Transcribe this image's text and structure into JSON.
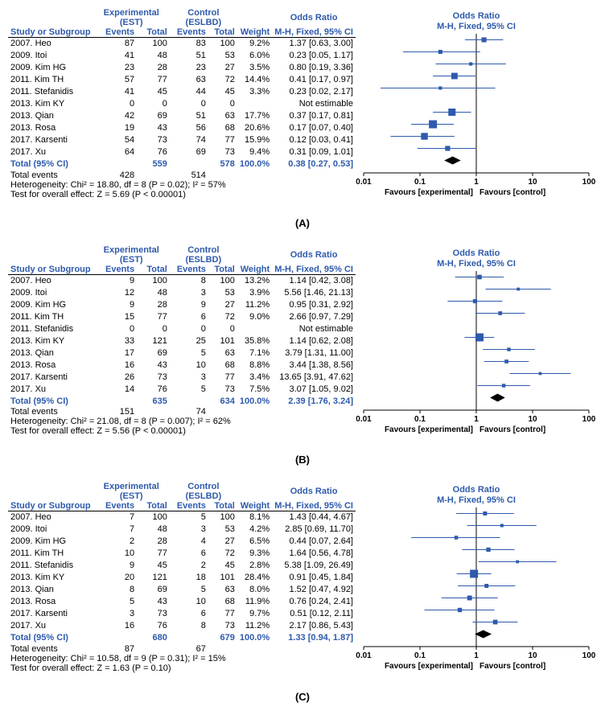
{
  "plot_axis": {
    "xmin_log": -2,
    "xmax_log": 2,
    "ticks": [
      0.01,
      0.1,
      1,
      10,
      100
    ],
    "tick_labels": [
      "0.01",
      "0.1",
      "1",
      "10",
      "100"
    ],
    "favours_left": "Favours [experimental]",
    "favours_right": "Favours [control]",
    "axis_color": "#000000",
    "marker_color": "#2e5aac",
    "square_color": "#2e5aac",
    "diamond_color": "#000000",
    "ci_line_width": 1,
    "square_max_size": 10,
    "title": "Odds Ratio",
    "subtitle": "M-H, Fixed, 95% CI"
  },
  "header": {
    "study_col": "Study or Subgroup",
    "exp_group_label": "Experimental (EST)",
    "ctrl_group_label": "Control (ESLBD)",
    "events": "Events",
    "total": "Total",
    "weight": "Weight",
    "effect": "Odds Ratio",
    "effect_sub": "M-H, Fixed, 95% CI"
  },
  "panels": [
    {
      "label": "(A)",
      "rows": [
        {
          "study": "2007. Heo",
          "ee": 87,
          "et": 100,
          "ce": 83,
          "ct": 100,
          "w": "9.2%",
          "or": 1.37,
          "lo": 0.63,
          "hi": 3.0,
          "disp": "1.37 [0.63, 3.00]"
        },
        {
          "study": "2009. Itoi",
          "ee": 41,
          "et": 48,
          "ce": 51,
          "ct": 53,
          "w": "6.0%",
          "or": 0.23,
          "lo": 0.05,
          "hi": 1.17,
          "disp": "0.23 [0.05, 1.17]"
        },
        {
          "study": "2009. Kim HG",
          "ee": 23,
          "et": 28,
          "ce": 23,
          "ct": 27,
          "w": "3.5%",
          "or": 0.8,
          "lo": 0.19,
          "hi": 3.36,
          "disp": "0.80 [0.19, 3.36]"
        },
        {
          "study": "2011. Kim TH",
          "ee": 57,
          "et": 77,
          "ce": 63,
          "ct": 72,
          "w": "14.4%",
          "or": 0.41,
          "lo": 0.17,
          "hi": 0.97,
          "disp": "0.41 [0.17, 0.97]"
        },
        {
          "study": "2011. Stefanidis",
          "ee": 41,
          "et": 45,
          "ce": 44,
          "ct": 45,
          "w": "3.3%",
          "or": 0.23,
          "lo": 0.02,
          "hi": 2.17,
          "disp": "0.23 [0.02, 2.17]"
        },
        {
          "study": "2013. Kim KY",
          "ee": 0,
          "et": 0,
          "ce": 0,
          "ct": 0,
          "w": "",
          "or": null,
          "lo": null,
          "hi": null,
          "disp": "Not estimable"
        },
        {
          "study": "2013. Qian",
          "ee": 42,
          "et": 69,
          "ce": 51,
          "ct": 63,
          "w": "17.7%",
          "or": 0.37,
          "lo": 0.17,
          "hi": 0.81,
          "disp": "0.37 [0.17, 0.81]"
        },
        {
          "study": "2013. Rosa",
          "ee": 19,
          "et": 43,
          "ce": 56,
          "ct": 68,
          "w": "20.6%",
          "or": 0.17,
          "lo": 0.07,
          "hi": 0.4,
          "disp": "0.17 [0.07, 0.40]"
        },
        {
          "study": "2017. Karsenti",
          "ee": 54,
          "et": 73,
          "ce": 74,
          "ct": 77,
          "w": "15.9%",
          "or": 0.12,
          "lo": 0.03,
          "hi": 0.41,
          "disp": "0.12 [0.03, 0.41]"
        },
        {
          "study": "2017. Xu",
          "ee": 64,
          "et": 76,
          "ce": 69,
          "ct": 73,
          "w": "9.4%",
          "or": 0.31,
          "lo": 0.09,
          "hi": 1.01,
          "disp": "0.31 [0.09, 1.01]"
        }
      ],
      "total": {
        "et": 559,
        "ct": 578,
        "w": "100.0%",
        "or": 0.38,
        "lo": 0.27,
        "hi": 0.53,
        "disp": "0.38 [0.27, 0.53]"
      },
      "total_label": "Total (95% CI)",
      "total_events": {
        "label": "Total events",
        "ee": 428,
        "ce": 514
      },
      "het": "Heterogeneity: Chi² = 18.80, df = 8 (P = 0.02); I² = 57%",
      "test": "Test for overall effect: Z = 5.69 (P < 0.00001)"
    },
    {
      "label": "(B)",
      "rows": [
        {
          "study": "2007. Heo",
          "ee": 9,
          "et": 100,
          "ce": 8,
          "ct": 100,
          "w": "13.2%",
          "or": 1.14,
          "lo": 0.42,
          "hi": 3.08,
          "disp": "1.14 [0.42, 3.08]"
        },
        {
          "study": "2009. Itoi",
          "ee": 12,
          "et": 48,
          "ce": 3,
          "ct": 53,
          "w": "3.9%",
          "or": 5.56,
          "lo": 1.46,
          "hi": 21.13,
          "disp": "5.56 [1.46, 21.13]"
        },
        {
          "study": "2009. Kim HG",
          "ee": 9,
          "et": 28,
          "ce": 9,
          "ct": 27,
          "w": "11.2%",
          "or": 0.95,
          "lo": 0.31,
          "hi": 2.92,
          "disp": "0.95 [0.31, 2.92]"
        },
        {
          "study": "2011. Kim TH",
          "ee": 15,
          "et": 77,
          "ce": 6,
          "ct": 72,
          "w": "9.0%",
          "or": 2.66,
          "lo": 0.97,
          "hi": 7.29,
          "disp": "2.66 [0.97, 7.29]"
        },
        {
          "study": "2011. Stefanidis",
          "ee": 0,
          "et": 0,
          "ce": 0,
          "ct": 0,
          "w": "",
          "or": null,
          "lo": null,
          "hi": null,
          "disp": "Not estimable"
        },
        {
          "study": "2013. Kim KY",
          "ee": 33,
          "et": 121,
          "ce": 25,
          "ct": 101,
          "w": "35.8%",
          "or": 1.14,
          "lo": 0.62,
          "hi": 2.08,
          "disp": "1.14 [0.62, 2.08]"
        },
        {
          "study": "2013. Qian",
          "ee": 17,
          "et": 69,
          "ce": 5,
          "ct": 63,
          "w": "7.1%",
          "or": 3.79,
          "lo": 1.31,
          "hi": 11.0,
          "disp": "3.79 [1.31, 11.00]"
        },
        {
          "study": "2013. Rosa",
          "ee": 16,
          "et": 43,
          "ce": 10,
          "ct": 68,
          "w": "8.8%",
          "or": 3.44,
          "lo": 1.38,
          "hi": 8.56,
          "disp": "3.44 [1.38, 8.56]"
        },
        {
          "study": "2017. Karsenti",
          "ee": 26,
          "et": 73,
          "ce": 3,
          "ct": 77,
          "w": "3.4%",
          "or": 13.65,
          "lo": 3.91,
          "hi": 47.62,
          "disp": "13.65 [3.91, 47.62]"
        },
        {
          "study": "2017. Xu",
          "ee": 14,
          "et": 76,
          "ce": 5,
          "ct": 73,
          "w": "7.5%",
          "or": 3.07,
          "lo": 1.05,
          "hi": 9.02,
          "disp": "3.07 [1.05, 9.02]"
        }
      ],
      "total": {
        "et": 635,
        "ct": 634,
        "w": "100.0%",
        "or": 2.39,
        "lo": 1.76,
        "hi": 3.24,
        "disp": "2.39 [1.76, 3.24]"
      },
      "total_label": "Total (95% CI)",
      "total_events": {
        "label": "Total events",
        "ee": 151,
        "ce": 74
      },
      "het": "Heterogeneity: Chi² = 21.08, df = 8 (P = 0.007); I² = 62%",
      "test": "Test for overall effect: Z = 5.56 (P < 0.00001)"
    },
    {
      "label": "(C)",
      "rows": [
        {
          "study": "2007. Heo",
          "ee": 7,
          "et": 100,
          "ce": 5,
          "ct": 100,
          "w": "8.1%",
          "or": 1.43,
          "lo": 0.44,
          "hi": 4.67,
          "disp": "1.43 [0.44, 4.67]"
        },
        {
          "study": "2009. Itoi",
          "ee": 7,
          "et": 48,
          "ce": 3,
          "ct": 53,
          "w": "4.2%",
          "or": 2.85,
          "lo": 0.69,
          "hi": 11.7,
          "disp": "2.85 [0.69, 11.70]"
        },
        {
          "study": "2009. Kim HG",
          "ee": 2,
          "et": 28,
          "ce": 4,
          "ct": 27,
          "w": "6.5%",
          "or": 0.44,
          "lo": 0.07,
          "hi": 2.64,
          "disp": "0.44 [0.07, 2.64]"
        },
        {
          "study": "2011. Kim TH",
          "ee": 10,
          "et": 77,
          "ce": 6,
          "ct": 72,
          "w": "9.3%",
          "or": 1.64,
          "lo": 0.56,
          "hi": 4.78,
          "disp": "1.64 [0.56, 4.78]"
        },
        {
          "study": "2011. Stefanidis",
          "ee": 9,
          "et": 45,
          "ce": 2,
          "ct": 45,
          "w": "2.8%",
          "or": 5.38,
          "lo": 1.09,
          "hi": 26.49,
          "disp": "5.38 [1.09, 26.49]"
        },
        {
          "study": "2013. Kim KY",
          "ee": 20,
          "et": 121,
          "ce": 18,
          "ct": 101,
          "w": "28.4%",
          "or": 0.91,
          "lo": 0.45,
          "hi": 1.84,
          "disp": "0.91 [0.45, 1.84]"
        },
        {
          "study": "2013. Qian",
          "ee": 8,
          "et": 69,
          "ce": 5,
          "ct": 63,
          "w": "8.0%",
          "or": 1.52,
          "lo": 0.47,
          "hi": 4.92,
          "disp": "1.52 [0.47, 4.92]"
        },
        {
          "study": "2013. Rosa",
          "ee": 5,
          "et": 43,
          "ce": 10,
          "ct": 68,
          "w": "11.9%",
          "or": 0.76,
          "lo": 0.24,
          "hi": 2.41,
          "disp": "0.76 [0.24, 2.41]"
        },
        {
          "study": "2017. Karsenti",
          "ee": 3,
          "et": 73,
          "ce": 6,
          "ct": 77,
          "w": "9.7%",
          "or": 0.51,
          "lo": 0.12,
          "hi": 2.11,
          "disp": "0.51 [0.12, 2.11]"
        },
        {
          "study": "2017. Xu",
          "ee": 16,
          "et": 76,
          "ce": 8,
          "ct": 73,
          "w": "11.2%",
          "or": 2.17,
          "lo": 0.86,
          "hi": 5.43,
          "disp": "2.17 [0.86, 5.43]"
        }
      ],
      "total": {
        "et": 680,
        "ct": 679,
        "w": "100.0%",
        "or": 1.33,
        "lo": 0.94,
        "hi": 1.87,
        "disp": "1.33 [0.94, 1.87]"
      },
      "total_label": "Total (95% CI)",
      "total_events": {
        "label": "Total events",
        "ee": 87,
        "ce": 67
      },
      "het": "Heterogeneity: Chi² = 10.58, df = 9 (P = 0.31); I² = 15%",
      "test": "Test for overall effect: Z = 1.63 (P = 0.10)"
    }
  ]
}
